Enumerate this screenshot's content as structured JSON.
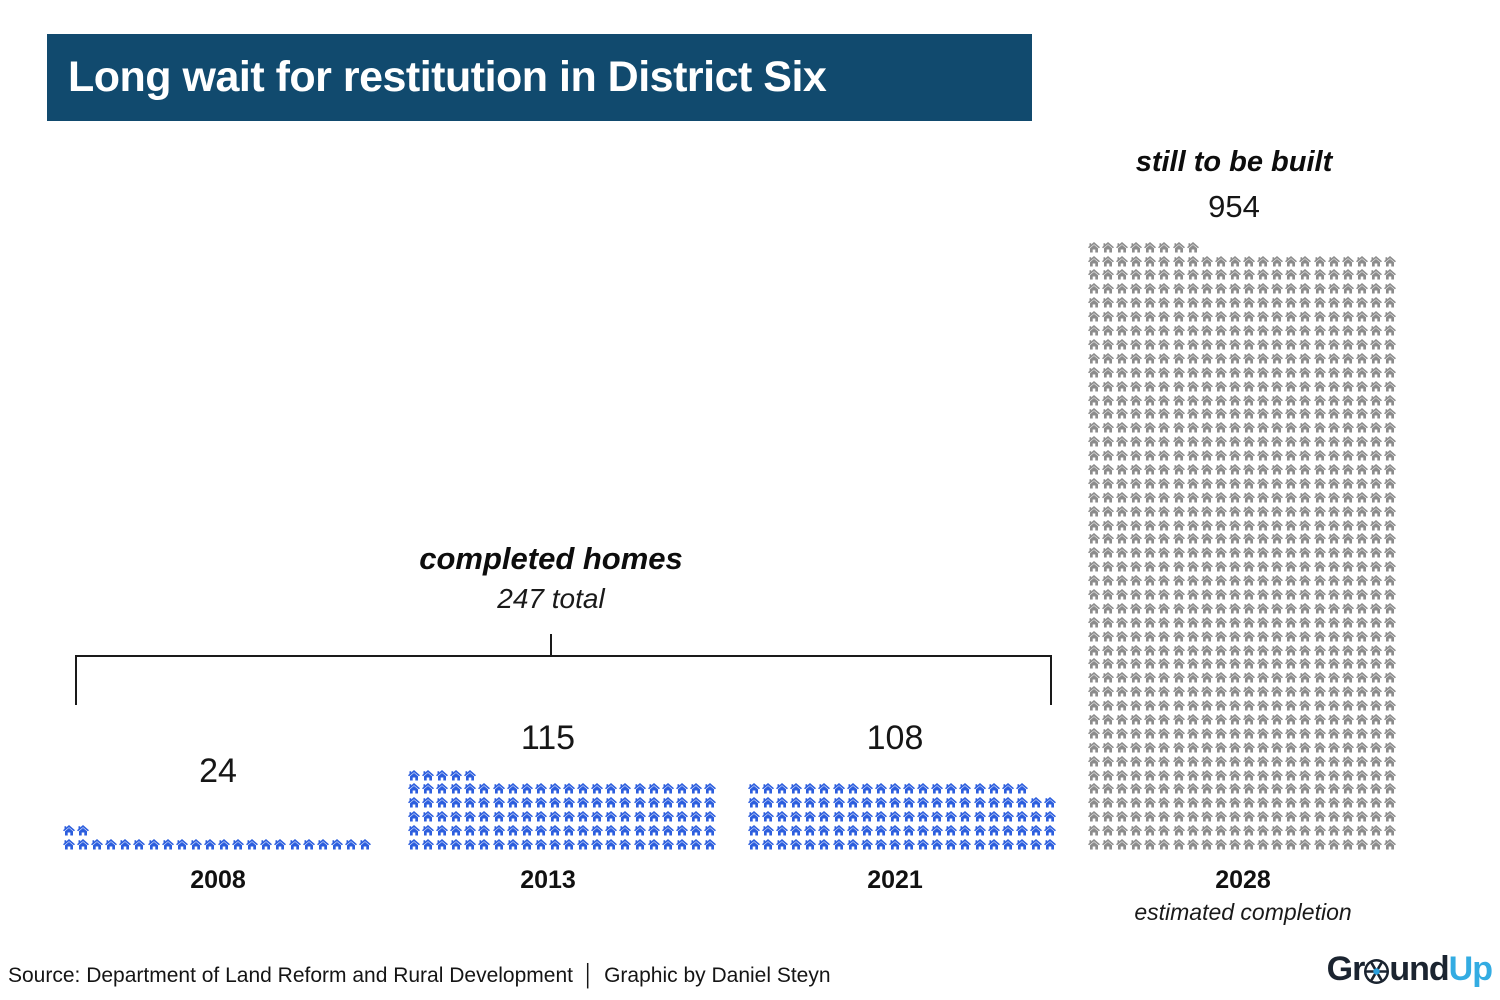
{
  "title": "Long wait for restitution in District Six",
  "chart_data": {
    "type": "pictogram",
    "icon": "house",
    "icons_per_row": 22,
    "completed": {
      "label": "completed homes",
      "total": 247,
      "total_label": "247 total",
      "groups": [
        {
          "year": "2008",
          "count": 24
        },
        {
          "year": "2013",
          "count": 115
        },
        {
          "year": "2021",
          "count": 108
        }
      ]
    },
    "pending": {
      "label": "still to be built",
      "count": 954,
      "year": "2028",
      "note": "estimated completion"
    },
    "legend_position": "above-groups",
    "colors": {
      "completed": "#2c5ede",
      "pending": "#8c8c8c",
      "title_bg": "#114a6e",
      "title_text": "#ffffff",
      "logo_dark": "#1b2430",
      "logo_blue": "#33ace2"
    }
  },
  "footer": {
    "source": "Source: Department of Land Reform and Rural Development",
    "separator": "│",
    "credit": "Graphic by Daniel Steyn",
    "logo": {
      "part1": "Gr",
      "part2": "und",
      "part3": "Up"
    }
  }
}
